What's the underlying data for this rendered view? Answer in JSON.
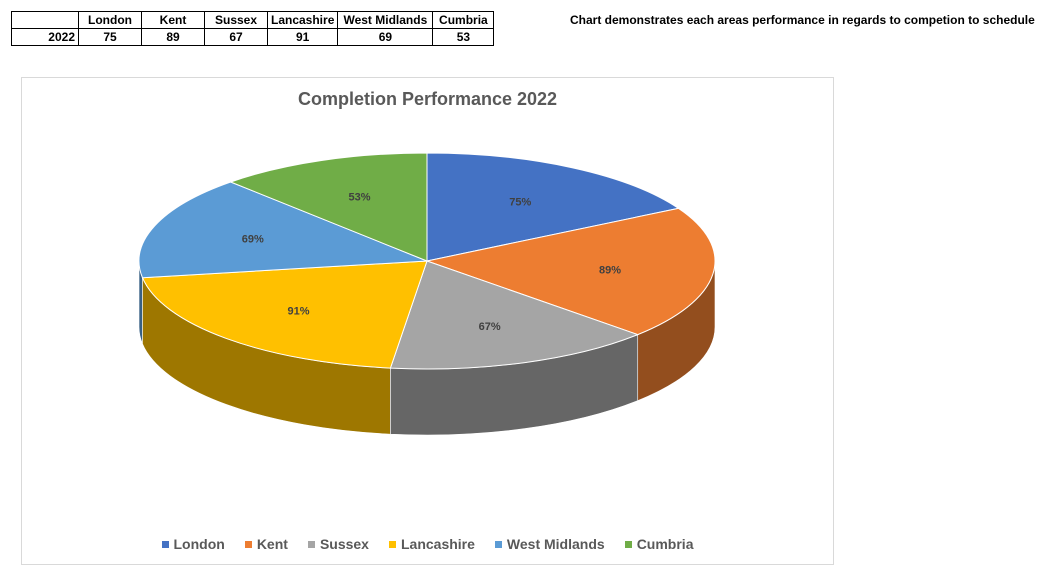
{
  "table": {
    "header": [
      "",
      "London",
      "Kent",
      "Sussex",
      "Lancashire",
      "West Midlands",
      "Cumbria"
    ],
    "row": [
      "2022",
      "75",
      "89",
      "67",
      "91",
      "69",
      "53"
    ]
  },
  "note": "Chart demonstrates each areas performance in regards to competion to schedule",
  "chart_data": {
    "type": "pie",
    "title": "Completion Performance 2022",
    "categories": [
      "London",
      "Kent",
      "Sussex",
      "Lancashire",
      "West Midlands",
      "Cumbria"
    ],
    "values": [
      75,
      89,
      67,
      91,
      69,
      53
    ],
    "labels": [
      "75%",
      "89%",
      "67%",
      "91%",
      "69%",
      "53%"
    ],
    "colors": [
      "#4472c4",
      "#ed7d31",
      "#a5a5a5",
      "#ffc000",
      "#5b9bd5",
      "#70ad47"
    ],
    "style": "3d",
    "legend": "bottom"
  }
}
